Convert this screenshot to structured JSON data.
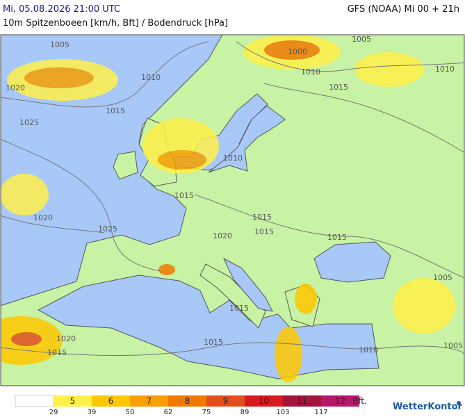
{
  "header": {
    "title_left": "Mi, 05.08.2026 21:00 UTC",
    "title_right": "GFS (NOAA) Mi 00 + 21h",
    "subtitle": "10m Spitzenboeen [km/h, Bft] / Bodendruck [hPa]"
  },
  "isobar_labels": [
    1005,
    1010,
    1020,
    1015,
    1025,
    1020,
    1025,
    1015,
    1010,
    1000,
    1010,
    1005,
    1015,
    1010,
    1015,
    1015,
    1020,
    1015,
    1005,
    1015,
    1020,
    1015,
    1010,
    1005,
    1015
  ],
  "legend": {
    "bft": [
      5,
      6,
      7,
      8,
      9,
      10,
      11,
      12
    ],
    "colors": [
      "#fff04a",
      "#ffc800",
      "#f7a000",
      "#f07a00",
      "#e44e1a",
      "#d81a20",
      "#a3143c",
      "#b8186c"
    ],
    "blank_color": "#ffffff",
    "thresholds": [
      29,
      39,
      50,
      62,
      75,
      89,
      103,
      117
    ],
    "unit": "Bft."
  },
  "logo": "WetterKontor"
}
